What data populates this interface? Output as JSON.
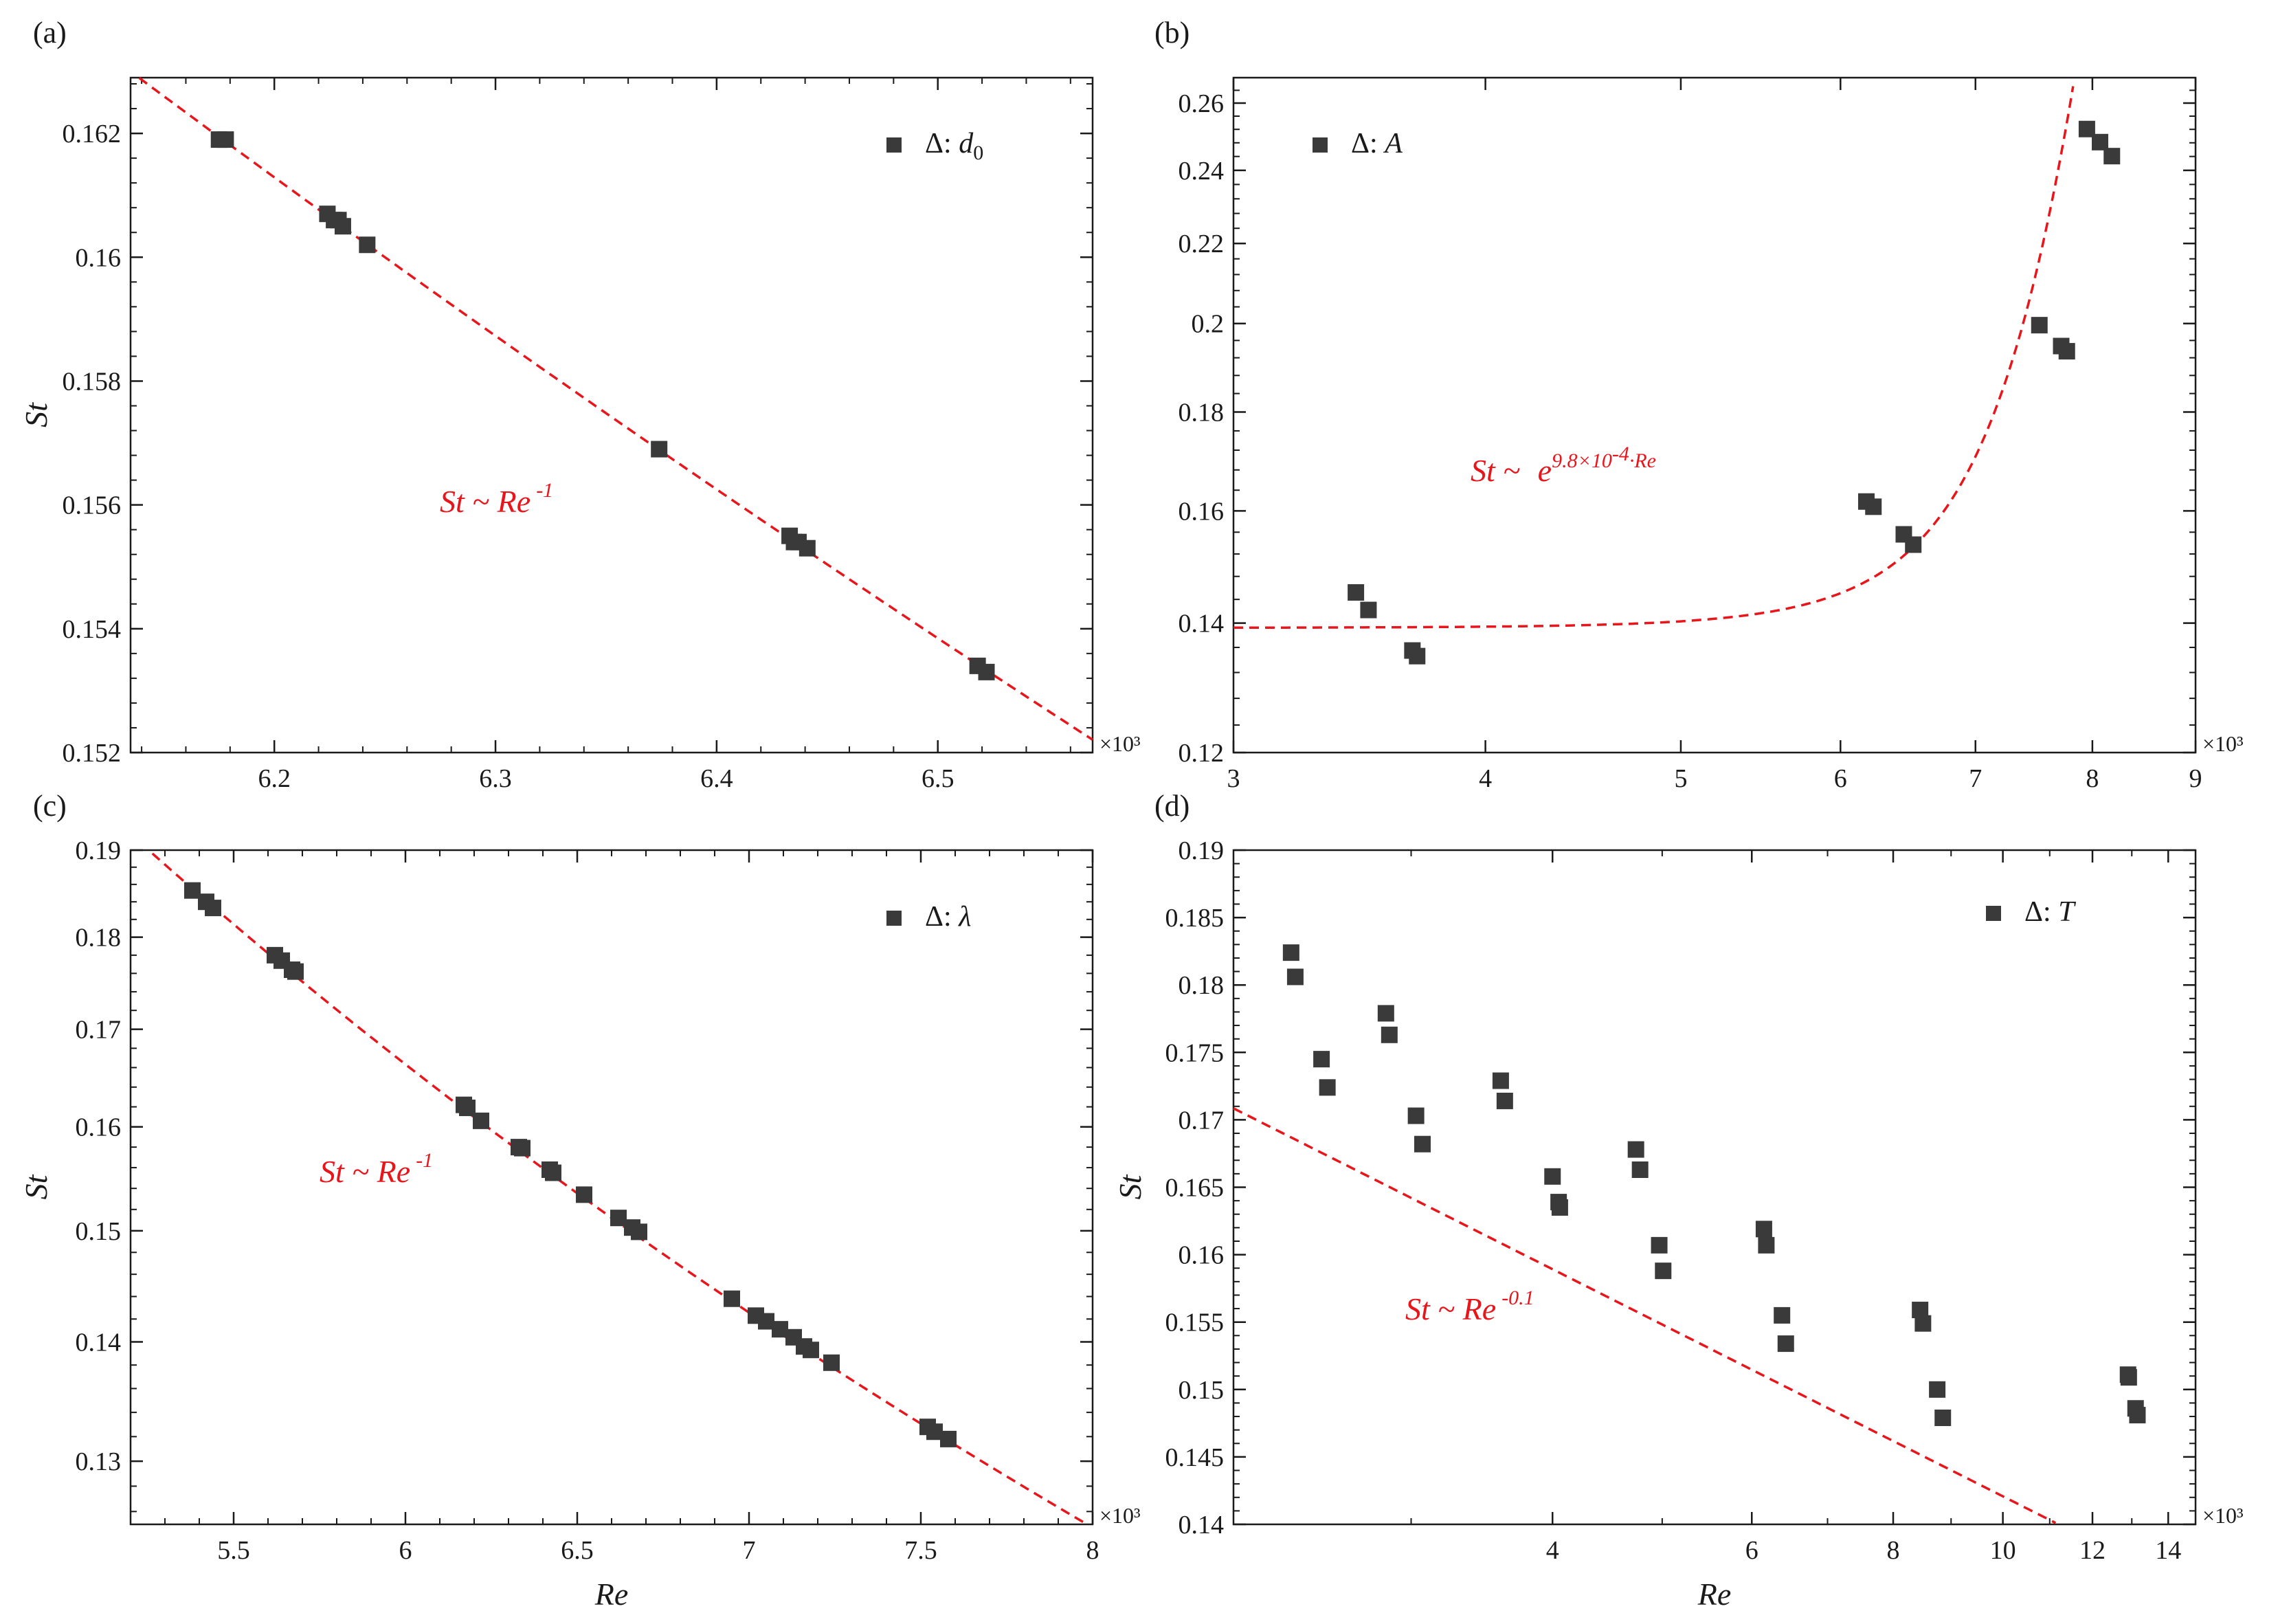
{
  "colors": {
    "marker": "#3a3a3a",
    "fit": "#e8151b",
    "axis": "#1a1a1a"
  },
  "chart_data": [
    {
      "type": "scatter",
      "panel_label": "(a)",
      "xlabel": "",
      "ylabel": "St",
      "x_multiplier": "×10³",
      "xscale": "linear",
      "yscale": "linear",
      "xlim": [
        6.135,
        6.57
      ],
      "ylim": [
        0.152,
        0.1629
      ],
      "xticks": [
        6.2,
        6.3,
        6.4,
        6.5
      ],
      "xtick_labels": [
        "6.2",
        "6.3",
        "6.4",
        "6.5"
      ],
      "yticks": [
        0.152,
        0.154,
        0.156,
        0.158,
        0.16,
        0.162
      ],
      "ytick_labels": [
        "0.152",
        "0.154",
        "0.156",
        "0.158",
        "0.16",
        "0.162"
      ],
      "legend": {
        "symbol": "Δ: ",
        "param": "d",
        "sub": "0",
        "position": "top-right"
      },
      "series": [
        {
          "name": "Δ: d0",
          "x": [
            6.175,
            6.178,
            6.224,
            6.227,
            6.229,
            6.231,
            6.242,
            6.374,
            6.433,
            6.435,
            6.437,
            6.441,
            6.518,
            6.522
          ],
          "y": [
            0.1619,
            0.1619,
            0.1607,
            0.1606,
            0.1606,
            0.1605,
            0.1602,
            0.1569,
            0.1555,
            0.1554,
            0.1554,
            0.1553,
            0.1534,
            0.1533
          ]
        }
      ],
      "fit": {
        "label_main": "St ~ Re",
        "label_exp": "-1",
        "a": 1000
      }
    },
    {
      "type": "scatter",
      "panel_label": "(b)",
      "xlabel": "",
      "ylabel": "",
      "x_multiplier": "×10³",
      "xscale": "log",
      "yscale": "log",
      "xlim": [
        3,
        9
      ],
      "ylim": [
        0.12,
        0.268
      ],
      "xticks": [
        3,
        4,
        5,
        6,
        7,
        8,
        9
      ],
      "xtick_labels": [
        "3",
        "4",
        "5",
        "6",
        "7",
        "8",
        "9"
      ],
      "yticks": [
        0.12,
        0.14,
        0.16,
        0.18,
        0.2,
        0.22,
        0.24,
        0.26
      ],
      "ytick_labels": [
        "0.12",
        "0.14",
        "0.16",
        "0.18",
        "0.2",
        "0.22",
        "0.24",
        "0.26"
      ],
      "legend": {
        "symbol": "Δ: ",
        "param": "A",
        "position": "top-left"
      },
      "series": [
        {
          "name": "Δ: A",
          "x": [
            3.45,
            3.5,
            3.68,
            3.7,
            6.18,
            6.23,
            6.45,
            6.52,
            7.53,
            7.72,
            7.77,
            7.95,
            8.07,
            8.18
          ],
          "y": [
            0.1452,
            0.1422,
            0.1355,
            0.1346,
            0.1618,
            0.1608,
            0.1556,
            0.1537,
            0.1996,
            0.1947,
            0.1935,
            0.2521,
            0.2482,
            0.2441
          ]
        }
      ],
      "fit": {
        "label_main": "St ~ ",
        "label_e": "e",
        "label_exp": "9.8×10",
        "label_exp2": "-4",
        "label_exp3": "·Re",
        "c0": 0.1392,
        "c1": 2.46e-07,
        "k": 1.68
      }
    },
    {
      "type": "scatter",
      "panel_label": "(c)",
      "xlabel": "Re",
      "ylabel": "St",
      "x_multiplier": "×10³",
      "xscale": "linear",
      "yscale": "log",
      "xlim": [
        5.2,
        8.0
      ],
      "ylim": [
        0.125,
        0.19
      ],
      "xticks": [
        5.5,
        6,
        6.5,
        7,
        7.5,
        8
      ],
      "xtick_labels": [
        "5.5",
        "6",
        "6.5",
        "7",
        "7.5",
        "8"
      ],
      "yticks": [
        0.13,
        0.14,
        0.15,
        0.16,
        0.17,
        0.18,
        0.19
      ],
      "ytick_labels": [
        "0.13",
        "0.14",
        "0.15",
        "0.16",
        "0.17",
        "0.18",
        "0.19"
      ],
      "legend": {
        "symbol": "Δ: ",
        "param": "λ",
        "position": "top-right"
      },
      "series": [
        {
          "name": "Δ: λ",
          "x": [
            5.38,
            5.42,
            5.44,
            5.62,
            5.64,
            5.67,
            5.68,
            6.17,
            6.18,
            6.22,
            6.33,
            6.34,
            6.42,
            6.43,
            6.52,
            6.62,
            6.66,
            6.68,
            6.95,
            7.02,
            7.05,
            7.09,
            7.13,
            7.16,
            7.18,
            7.24,
            7.52,
            7.54,
            7.58
          ],
          "y": [
            0.1853,
            0.184,
            0.1833,
            0.178,
            0.1774,
            0.1764,
            0.1762,
            0.1622,
            0.1619,
            0.1606,
            0.158,
            0.1579,
            0.1558,
            0.1555,
            0.1534,
            0.1512,
            0.1503,
            0.1499,
            0.1438,
            0.1423,
            0.1418,
            0.1411,
            0.1404,
            0.1396,
            0.1393,
            0.1382,
            0.1328,
            0.1324,
            0.1318
          ]
        }
      ],
      "fit": {
        "label_main": "St ~ Re",
        "label_exp": "-1",
        "a": 0.998
      }
    },
    {
      "type": "scatter",
      "panel_label": "(d)",
      "xlabel": "Re",
      "ylabel": "St",
      "x_multiplier": "×10³",
      "xscale": "log",
      "yscale": "linear",
      "xlim": [
        2.09,
        14.8
      ],
      "ylim": [
        0.14,
        0.19
      ],
      "xticks": [
        4,
        6,
        8,
        10,
        12,
        14
      ],
      "xtick_labels": [
        "4",
        "6",
        "8",
        "10",
        "12",
        "14"
      ],
      "yticks": [
        0.14,
        0.145,
        0.15,
        0.155,
        0.16,
        0.165,
        0.17,
        0.175,
        0.18,
        0.185,
        0.19
      ],
      "ytick_labels": [
        "0.14",
        "0.145",
        "0.15",
        "0.155",
        "0.16",
        "0.165",
        "0.17",
        "0.175",
        "0.18",
        "0.185",
        "0.19"
      ],
      "legend": {
        "symbol": "Δ: ",
        "param": "T",
        "position": "top-right"
      },
      "series": [
        {
          "name": "Δ: T",
          "x": [
            2.35,
            2.37,
            2.5,
            2.53,
            2.85,
            2.87,
            3.03,
            3.07,
            3.6,
            3.63,
            4.0,
            4.05,
            4.06,
            4.74,
            4.78,
            4.97,
            5.01,
            6.15,
            6.18,
            6.38,
            6.43,
            8.45,
            8.5,
            8.75,
            8.85,
            12.9,
            12.92,
            13.1,
            13.15
          ],
          "y": [
            0.1824,
            0.1806,
            0.1745,
            0.1724,
            0.1779,
            0.1763,
            0.1703,
            0.1682,
            0.1729,
            0.1714,
            0.1658,
            0.1639,
            0.1635,
            0.1678,
            0.1663,
            0.1607,
            0.1588,
            0.1619,
            0.1607,
            0.1555,
            0.1534,
            0.1559,
            0.1549,
            0.15,
            0.1479,
            0.1511,
            0.1509,
            0.1486,
            0.1481
          ]
        }
      ],
      "fit": {
        "label_main": "St ~ Re",
        "label_exp": "-0.1",
        "a": 0.1844,
        "b": -0.01838
      }
    }
  ]
}
